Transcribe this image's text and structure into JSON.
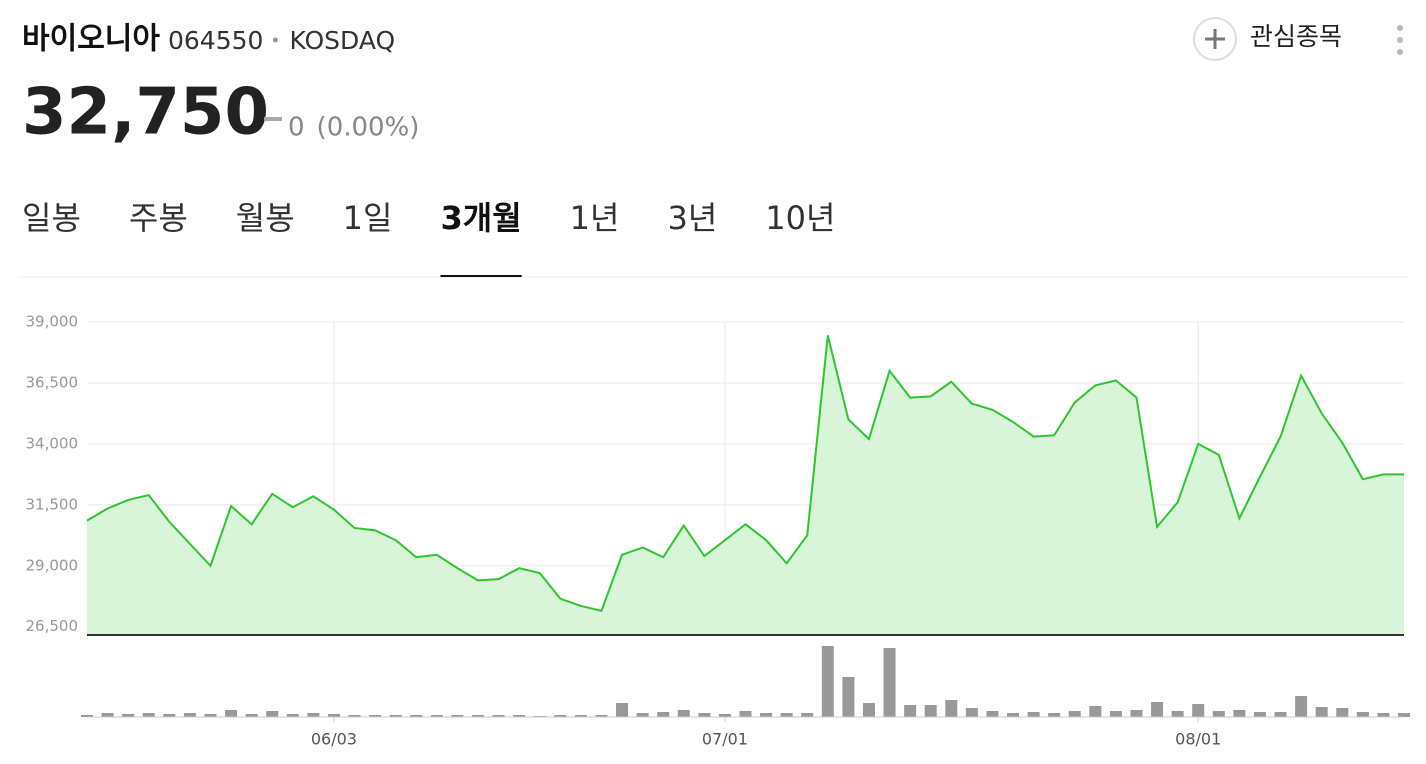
{
  "header": {
    "name": "바이오니아",
    "code": "064550",
    "market": "KOSDAQ",
    "price": "32,750",
    "change": "0",
    "change_rate": "(0.00%)",
    "watch": "관심종목"
  },
  "tabs": {
    "items": [
      "일봉",
      "주봉",
      "월봉",
      "1일",
      "3개월",
      "1년",
      "3년",
      "10년"
    ],
    "active": 4
  },
  "chart_data": [
    {
      "type": "area",
      "color": "#2fc52f",
      "fill_color": "#d9f5d9",
      "values": [
        30850,
        31350,
        31700,
        31900,
        30800,
        29900,
        29000,
        31450,
        30700,
        31950,
        31400,
        31850,
        31300,
        30550,
        30450,
        30050,
        29350,
        29450,
        28900,
        28400,
        28450,
        28900,
        28700,
        27650,
        27350,
        27150,
        29450,
        29750,
        29350,
        30650,
        29400,
        30050,
        30700,
        30050,
        29100,
        30250,
        38450,
        35000,
        34200,
        37000,
        35900,
        35950,
        36550,
        35650,
        35400,
        34900,
        34300,
        34350,
        35700,
        36400,
        36600,
        35900,
        30600,
        31600,
        34000,
        33550,
        30950,
        32650,
        34300,
        36800,
        35250,
        34050,
        32550,
        32750,
        32750
      ],
      "ylim": [
        26200,
        39000
      ],
      "yticks": [
        {
          "value": 26500,
          "label": "26,500"
        },
        {
          "value": 29000,
          "label": "29,000"
        },
        {
          "value": 31500,
          "label": "31,500"
        },
        {
          "value": 34000,
          "label": "34,000"
        },
        {
          "value": 36500,
          "label": "36,500"
        },
        {
          "value": 39000,
          "label": "39,000"
        }
      ],
      "grid": true
    },
    {
      "type": "bar",
      "color": "#999999",
      "categories": [
        null,
        null,
        null,
        null,
        null,
        null,
        null,
        null,
        null,
        null,
        null,
        null,
        "06/03",
        null,
        null,
        null,
        null,
        null,
        null,
        null,
        null,
        null,
        null,
        null,
        null,
        null,
        null,
        null,
        null,
        null,
        null,
        "07/01",
        null,
        null,
        null,
        null,
        null,
        null,
        null,
        null,
        null,
        null,
        null,
        null,
        null,
        null,
        null,
        null,
        null,
        null,
        null,
        null,
        null,
        null,
        "08/01",
        null,
        null,
        null,
        null,
        null,
        null,
        null,
        null,
        null,
        null
      ],
      "values": [
        2,
        4,
        3,
        4,
        3,
        4,
        3,
        7,
        3,
        6,
        3,
        4,
        3,
        2,
        2,
        2,
        2,
        2,
        2,
        2,
        2,
        2,
        1,
        2,
        2,
        2,
        14,
        4,
        5,
        7,
        4,
        3,
        6,
        4,
        4,
        4,
        71,
        40,
        14,
        69,
        12,
        12,
        17,
        9,
        6,
        4,
        5,
        4,
        6,
        11,
        6,
        7,
        15,
        6,
        13,
        6,
        7,
        5,
        5,
        21,
        10,
        9,
        5,
        4,
        4
      ],
      "ylim": [
        0,
        75
      ]
    }
  ]
}
